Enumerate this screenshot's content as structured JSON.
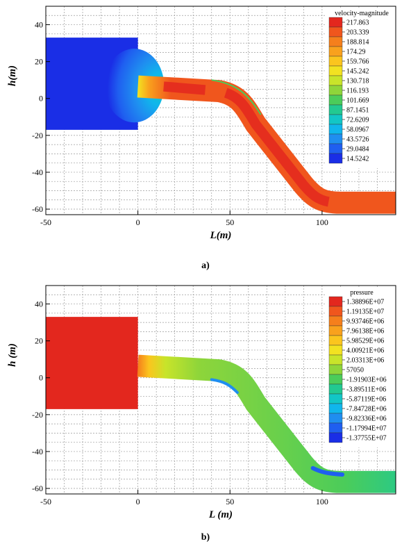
{
  "chart_data": [
    {
      "type": "heatmap",
      "field_name": "velocity-magnitude",
      "xlabel": "L(m)",
      "ylabel": "h(m)",
      "xlim": [
        -50,
        140
      ],
      "ylim": [
        -63,
        50
      ],
      "xticks": [
        -50,
        0,
        50,
        100
      ],
      "yticks": [
        40,
        20,
        0,
        -20,
        -40,
        -60
      ],
      "grid": true,
      "caption": "a)",
      "legend": {
        "title": "velocity-magnitude",
        "placement": "top-right",
        "levels": [
          "217.863",
          "203.339",
          "188.814",
          "174.29",
          "159.766",
          "145.242",
          "130.718",
          "116.193",
          "101.669",
          "87.1451",
          "72.6209",
          "58.0967",
          "43.5726",
          "29.0484",
          "14.5242"
        ],
        "colors": [
          "#e3271e",
          "#f0561d",
          "#f57f1c",
          "#f9a11d",
          "#fbc51e",
          "#f2e221",
          "#c8e42a",
          "#8ed53a",
          "#4bcc5a",
          "#22c991",
          "#12c6c6",
          "#10b6ec",
          "#1f8ef0",
          "#1f5ff0",
          "#1a2ee6"
        ]
      },
      "regions": [
        {
          "name": "reservoir",
          "x": [
            -50,
            0
          ],
          "y": [
            -17,
            33
          ],
          "color": "#1a2ee6"
        },
        {
          "name": "channel-upper",
          "x": [
            0,
            50
          ],
          "y": [
            0,
            13
          ],
          "color": "#f0561d"
        },
        {
          "name": "channel-slope",
          "x": [
            50,
            100
          ],
          "y": [
            -55,
            8
          ],
          "color": "#f0561d"
        },
        {
          "name": "channel-lower",
          "x": [
            100,
            140
          ],
          "y": [
            -62,
            -51
          ],
          "color": "#f0561d"
        }
      ]
    },
    {
      "type": "heatmap",
      "field_name": "pressure",
      "xlabel": "L (m)",
      "ylabel": "h (m)",
      "xlim": [
        -50,
        140
      ],
      "ylim": [
        -63,
        50
      ],
      "xticks": [
        -50,
        0,
        50,
        100
      ],
      "yticks": [
        40,
        20,
        0,
        -20,
        -40,
        -60
      ],
      "grid": true,
      "caption": "b)",
      "legend": {
        "title": "pressure",
        "placement": "top-right",
        "levels": [
          "1.38896E+07",
          "1.19135E+07",
          "9.93746E+06",
          "7.96138E+06",
          "5.98529E+06",
          "4.00921E+06",
          "2.03313E+06",
          "57050",
          "-1.91903E+06",
          "-3.89511E+06",
          "-5.87119E+06",
          "-7.84728E+06",
          "-9.82336E+06",
          "-1.17994E+07",
          "-1.37755E+07"
        ],
        "colors": [
          "#e3271e",
          "#f0561d",
          "#f57f1c",
          "#f9a11d",
          "#fbc51e",
          "#f2e221",
          "#c8e42a",
          "#8ed53a",
          "#4bcc5a",
          "#22c991",
          "#12c6c6",
          "#10b6ec",
          "#1f8ef0",
          "#1f5ff0",
          "#1a2ee6"
        ]
      },
      "regions": [
        {
          "name": "reservoir",
          "x": [
            -50,
            0
          ],
          "y": [
            -17,
            33
          ],
          "color": "#e3271e"
        },
        {
          "name": "channel-upper",
          "x": [
            0,
            50
          ],
          "y": [
            0,
            13
          ],
          "color": "#8ed53a"
        },
        {
          "name": "channel-slope",
          "x": [
            50,
            100
          ],
          "y": [
            -55,
            8
          ],
          "color": "#8ed53a"
        },
        {
          "name": "channel-lower",
          "x": [
            100,
            140
          ],
          "y": [
            -62,
            -51
          ],
          "color": "#22c991"
        }
      ]
    }
  ]
}
